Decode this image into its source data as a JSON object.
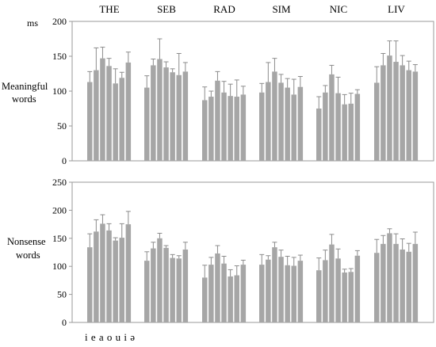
{
  "chart_data": {
    "type": "bar",
    "unit_label": "ms",
    "groups": [
      "THE",
      "SEB",
      "RAD",
      "SIM",
      "NIC",
      "LIV"
    ],
    "vowel_labels": "i e a o u i ə",
    "vowels": [
      "i",
      "e",
      "a",
      "o",
      "u",
      "i",
      "ə"
    ],
    "panels": [
      {
        "label": [
          "Meaningful",
          "words"
        ],
        "ylim": [
          0,
          200
        ],
        "yticks": [
          0,
          50,
          100,
          150,
          200
        ],
        "series": [
          {
            "group": "THE",
            "values": [
              113,
              130,
              147,
              136,
              111,
              119,
              141
            ],
            "errors": [
              128,
              162,
              163,
              147,
              132,
              127,
              156
            ]
          },
          {
            "group": "SEB",
            "values": [
              105,
              137,
              146,
              134,
              127,
              123,
              128
            ],
            "errors": [
              122,
              146,
              175,
              142,
              132,
              154,
              141
            ]
          },
          {
            "group": "RAD",
            "values": [
              87,
              92,
              115,
              98,
              93,
              92,
              95
            ],
            "errors": [
              106,
              100,
              128,
              114,
              110,
              116,
              107
            ]
          },
          {
            "group": "SIM",
            "values": [
              98,
              113,
              128,
              112,
              105,
              95,
              106
            ],
            "errors": [
              111,
              141,
              147,
              124,
              118,
              117,
              121
            ]
          },
          {
            "group": "NIC",
            "values": [
              75,
              98,
              124,
              97,
              81,
              82,
              96
            ],
            "errors": [
              92,
              108,
              137,
              120,
              95,
              97,
              102
            ]
          },
          {
            "group": "LIV",
            "values": [
              112,
              137,
              151,
              142,
              137,
              130,
              128
            ],
            "errors": [
              135,
              154,
              172,
              172,
              151,
              143,
              138
            ]
          }
        ]
      },
      {
        "label": [
          "Nonsense",
          "words"
        ],
        "ylim": [
          0,
          250
        ],
        "yticks": [
          0,
          50,
          100,
          150,
          200,
          250
        ],
        "series": [
          {
            "group": "THE",
            "values": [
              134,
              162,
              176,
              164,
              146,
              151,
              175
            ],
            "errors": [
              158,
              183,
              192,
              176,
              151,
              176,
              198
            ]
          },
          {
            "group": "SEB",
            "values": [
              110,
              132,
              150,
              133,
              115,
              114,
              130
            ],
            "errors": [
              126,
              143,
              159,
              137,
              121,
              119,
              143
            ]
          },
          {
            "group": "RAD",
            "values": [
              80,
              103,
              123,
              105,
              82,
              84,
              103
            ],
            "errors": [
              102,
              116,
              137,
              118,
              94,
              101,
              111
            ]
          },
          {
            "group": "SIM",
            "values": [
              103,
              112,
              134,
              117,
              102,
              101,
              110
            ],
            "errors": [
              121,
              119,
              143,
              129,
              118,
              116,
              120
            ]
          },
          {
            "group": "NIC",
            "values": [
              93,
              111,
              139,
              114,
              89,
              90,
              119
            ],
            "errors": [
              115,
              129,
              157,
              131,
              95,
              96,
              128
            ]
          },
          {
            "group": "LIV",
            "values": [
              124,
              140,
              159,
              140,
              130,
              126,
              140
            ],
            "errors": [
              148,
              155,
              167,
              158,
              149,
              141,
              161
            ]
          }
        ]
      }
    ]
  }
}
